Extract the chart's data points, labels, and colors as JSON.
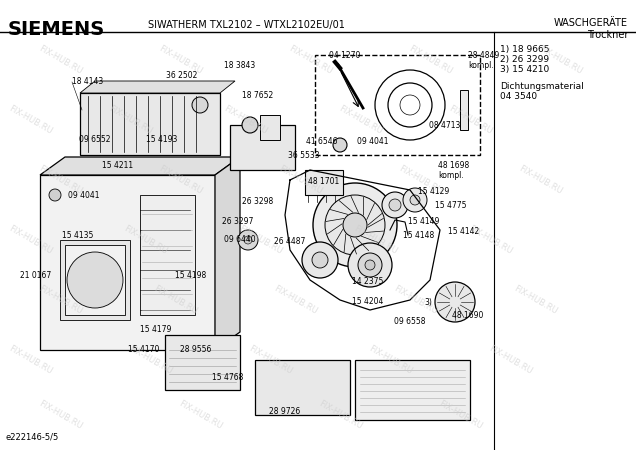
{
  "title_left": "SIEMENS",
  "title_center": "SIWATHERM TXL2102 – WTXL2102EU/01",
  "title_right_line1": "WASCHGERÄTE",
  "title_right_line2": "Trockner",
  "bottom_left": "e222146-5/5",
  "right_items_line1": "1) 18 9665",
  "right_items_line2": "2) 26 3299",
  "right_items_line3": "3) 15 4210",
  "right_dicht_line1": "Dichtungsmaterial",
  "right_dicht_line2": "04 3540",
  "bg_color": "#ffffff",
  "watermark_text": "FIX-HUB.RU",
  "fig_width": 6.36,
  "fig_height": 4.5,
  "dpi": 100
}
